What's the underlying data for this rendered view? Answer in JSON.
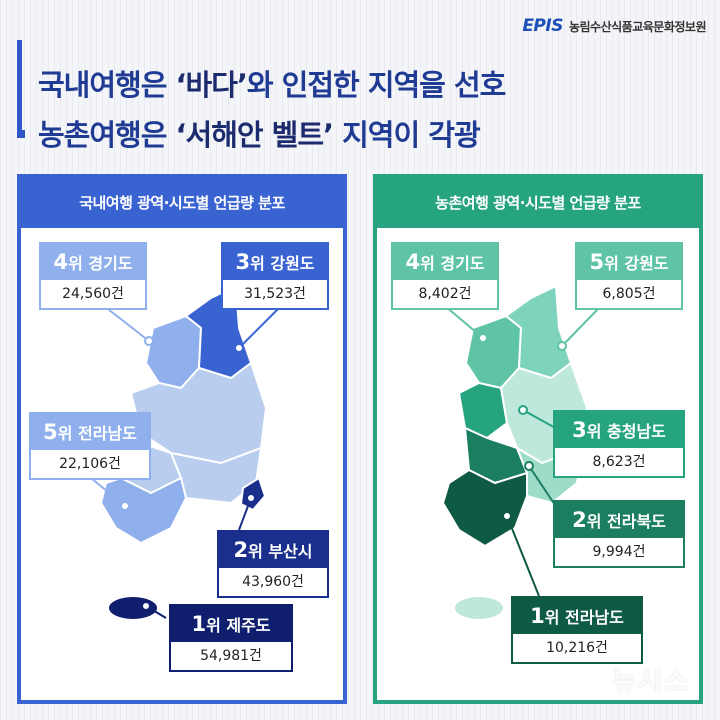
{
  "header": {
    "logo_mark": "EPIS",
    "logo_text": "농림수산식품교육문화정보원",
    "title_line1_pre": "국내여행은 ",
    "title_line1_hl": "‘바다’",
    "title_line1_post": "와 인접한 지역을 선호",
    "title_line2_pre": "농촌여행은 ",
    "title_line2_hl": "‘서해안 벨트’",
    "title_line2_post": " 지역이 각광"
  },
  "left_panel": {
    "title": "국내여행 광역·시도별 언급량 분포",
    "cards": [
      {
        "rank": "4",
        "suffix": "위 경기도",
        "count": "24,560건"
      },
      {
        "rank": "3",
        "suffix": "위 강원도",
        "count": "31,523건"
      },
      {
        "rank": "5",
        "suffix": "위 전라남도",
        "count": "22,106건"
      },
      {
        "rank": "2",
        "suffix": "위 부산시",
        "count": "43,960건"
      },
      {
        "rank": "1",
        "suffix": "위 제주도",
        "count": "54,981건"
      }
    ]
  },
  "right_panel": {
    "title": "농촌여행 광역·시도별 언급량 분포",
    "cards": [
      {
        "rank": "4",
        "suffix": "위 경기도",
        "count": "8,402건"
      },
      {
        "rank": "5",
        "suffix": "위 강원도",
        "count": "6,805건"
      },
      {
        "rank": "3",
        "suffix": "위 충청남도",
        "count": "8,623건"
      },
      {
        "rank": "2",
        "suffix": "위 전라북도",
        "count": "9,994건"
      },
      {
        "rank": "1",
        "suffix": "위 전라남도",
        "count": "10,216건"
      }
    ]
  },
  "watermark": "뉴시스",
  "colors": {
    "left_accent": "#3a63d2",
    "right_accent": "#26a47f",
    "left_rank1": "#0f1f6e",
    "right_rank1": "#0f5a45"
  }
}
